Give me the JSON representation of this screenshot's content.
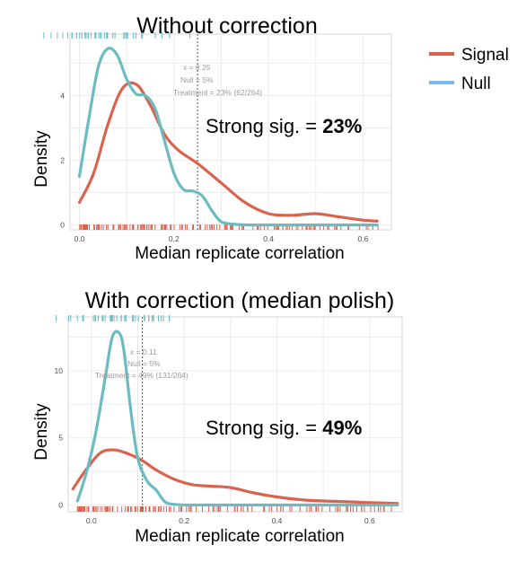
{
  "legend": {
    "items": [
      {
        "label": "Signal",
        "color": "#d9604a"
      },
      {
        "label": "Null",
        "color": "#7cb8e8"
      }
    ]
  },
  "chart_data": [
    {
      "type": "line",
      "title": "Without correction",
      "xlabel": "Median replicate correlation",
      "ylabel": "Density",
      "xlim": [
        -0.02,
        0.66
      ],
      "ylim": [
        -0.15,
        5.9
      ],
      "xticks": [
        "0.0",
        "0.2",
        "0.4",
        "0.6"
      ],
      "xtick_values": [
        0.0,
        0.2,
        0.4,
        0.6
      ],
      "yticks": [
        "0",
        "2",
        "4"
      ],
      "ytick_values": [
        0,
        2,
        4
      ],
      "grid": true,
      "threshold": {
        "x": 0.25
      },
      "annotation": [
        "x = 0.25",
        "Null = 5%",
        "Treatment = 23% (62/264)"
      ],
      "callout": {
        "prefix": "Strong sig. = ",
        "value": "23%"
      },
      "series": [
        {
          "name": "Signal",
          "color": "#d9634f",
          "x": [
            0.0,
            0.03,
            0.06,
            0.09,
            0.12,
            0.15,
            0.18,
            0.21,
            0.25,
            0.3,
            0.35,
            0.4,
            0.45,
            0.5,
            0.55,
            0.6,
            0.63
          ],
          "y": [
            0.7,
            1.6,
            3.1,
            4.2,
            4.35,
            3.7,
            2.8,
            2.3,
            1.9,
            1.3,
            0.7,
            0.35,
            0.3,
            0.35,
            0.25,
            0.15,
            0.12
          ]
        },
        {
          "name": "Null",
          "color": "#6bbcc2",
          "x": [
            0.0,
            0.02,
            0.04,
            0.06,
            0.08,
            0.1,
            0.12,
            0.14,
            0.16,
            0.18,
            0.2,
            0.22,
            0.24,
            0.26,
            0.28,
            0.3,
            0.33,
            0.36,
            0.4,
            0.5,
            0.63
          ],
          "y": [
            1.5,
            3.3,
            4.9,
            5.45,
            5.25,
            4.5,
            4.05,
            4.0,
            3.6,
            2.6,
            1.6,
            1.1,
            1.05,
            0.9,
            0.45,
            0.1,
            0.02,
            0.0,
            0.0,
            0.0,
            0.0
          ]
        }
      ]
    },
    {
      "type": "line",
      "title": "With correction (median polish)",
      "xlabel": "Median replicate correlation",
      "ylabel": "Density",
      "xlim": [
        -0.05,
        0.67
      ],
      "ylim": [
        -0.5,
        14.0
      ],
      "xticks": [
        "0.0",
        "0.2",
        "0.4",
        "0.6"
      ],
      "xtick_values": [
        0.0,
        0.2,
        0.4,
        0.6
      ],
      "yticks": [
        "0",
        "5",
        "10"
      ],
      "ytick_values": [
        0,
        5,
        10
      ],
      "grid": true,
      "threshold": {
        "x": 0.11
      },
      "annotation": [
        "x = 0.11",
        "Null = 5%",
        "Treatment = 49% (131/264)"
      ],
      "callout": {
        "prefix": "Strong sig. = ",
        "value": "49%"
      },
      "series": [
        {
          "name": "Signal",
          "color": "#d9634f",
          "x": [
            -0.04,
            -0.01,
            0.02,
            0.05,
            0.08,
            0.11,
            0.14,
            0.18,
            0.22,
            0.26,
            0.3,
            0.35,
            0.4,
            0.45,
            0.5,
            0.55,
            0.6,
            0.66
          ],
          "y": [
            1.2,
            2.7,
            3.9,
            4.1,
            3.8,
            3.3,
            2.6,
            1.9,
            1.5,
            1.4,
            1.3,
            0.9,
            0.6,
            0.4,
            0.3,
            0.25,
            0.18,
            0.12
          ]
        },
        {
          "name": "Null",
          "color": "#6bbcc2",
          "x": [
            -0.03,
            -0.01,
            0.01,
            0.03,
            0.045,
            0.06,
            0.07,
            0.085,
            0.1,
            0.12,
            0.14,
            0.16,
            0.19,
            0.22,
            0.3,
            0.45,
            0.66
          ],
          "y": [
            0.3,
            2.5,
            5.5,
            9.5,
            12.5,
            12.8,
            11.5,
            7.0,
            3.5,
            1.8,
            1.1,
            0.2,
            0.02,
            0.0,
            0.0,
            0.0,
            0.0
          ]
        }
      ]
    }
  ]
}
